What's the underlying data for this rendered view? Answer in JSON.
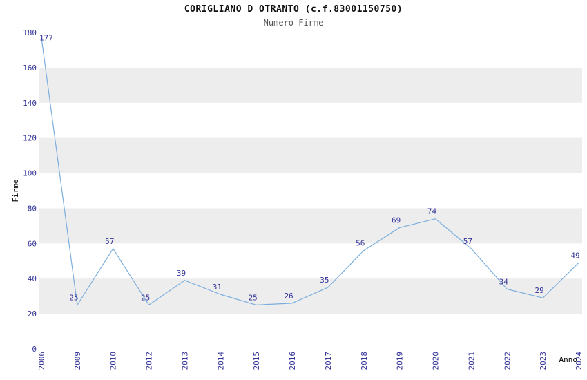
{
  "chart_data": {
    "type": "line",
    "title": "CORIGLIANO D OTRANTO (c.f.83001150750)",
    "subtitle": "Numero Firme",
    "xlabel": "Anno",
    "ylabel": "Firme",
    "categories": [
      "2006",
      "2009",
      "2010",
      "2012",
      "2013",
      "2014",
      "2015",
      "2016",
      "2017",
      "2018",
      "2019",
      "2020",
      "2021",
      "2022",
      "2023",
      "2024"
    ],
    "values": [
      177,
      25,
      57,
      25,
      39,
      31,
      25,
      26,
      35,
      56,
      69,
      74,
      57,
      34,
      29,
      49
    ],
    "ylim": [
      0,
      180
    ],
    "ytick_step": 20,
    "grid": false,
    "legend": "none",
    "band_ranges": [
      [
        20,
        40
      ],
      [
        60,
        80
      ],
      [
        100,
        120
      ],
      [
        140,
        160
      ]
    ],
    "colors": {
      "line": "#7aaede",
      "tick_label": "#333399",
      "value_label": "#333399",
      "band": "#ededed",
      "title": "#111111",
      "subtitle": "#555555",
      "axis_label": "#000000"
    }
  }
}
